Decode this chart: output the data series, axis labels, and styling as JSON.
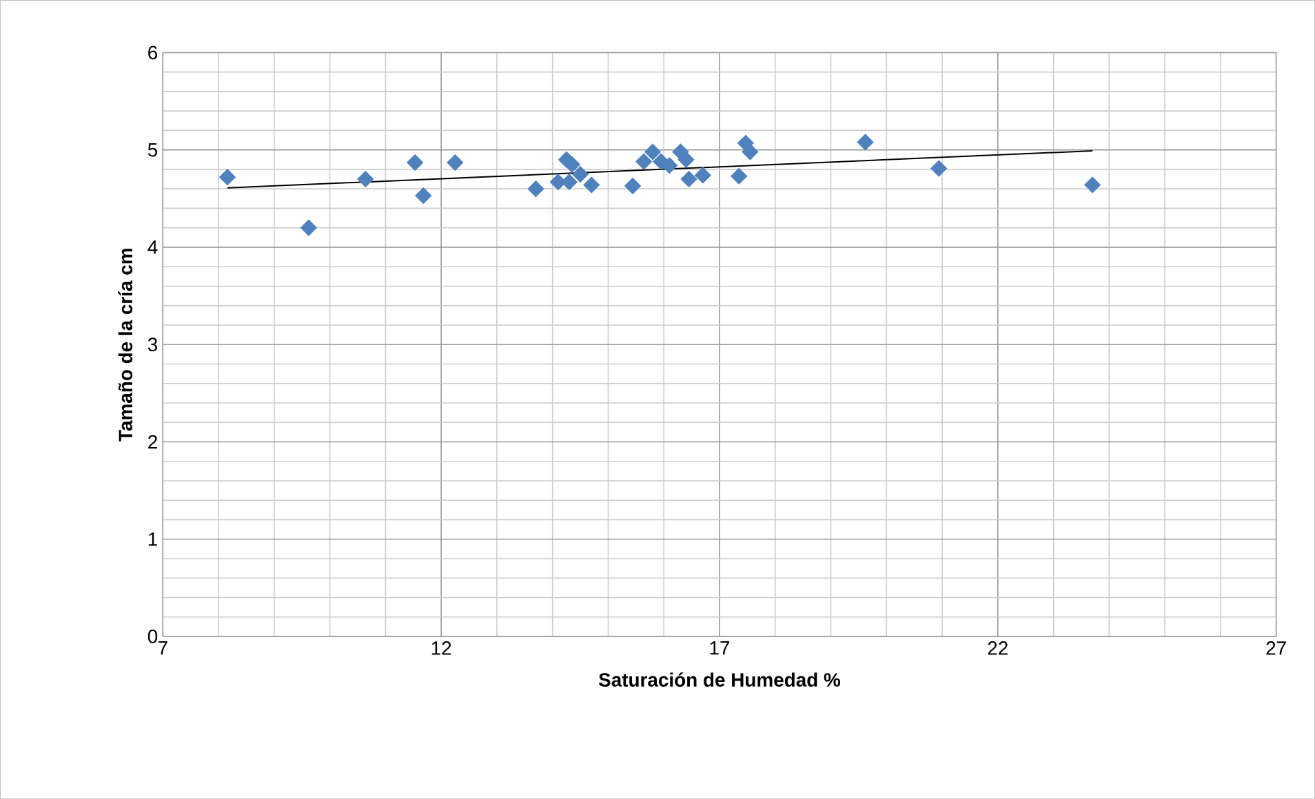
{
  "chart_data": {
    "type": "scatter",
    "xlabel": "Saturación de Humedad %",
    "ylabel": "Tamaño de la cría cm",
    "xlim": [
      7,
      27
    ],
    "xticks": [
      7,
      12,
      17,
      22,
      27
    ],
    "ylim": [
      0,
      6
    ],
    "yticks": [
      0,
      1,
      2,
      3,
      4,
      5,
      6
    ],
    "grid": true,
    "series": [
      {
        "marker": "diamond",
        "color": "#4f81bd",
        "x": [
          8.16,
          9.62,
          10.64,
          11.53,
          11.68,
          12.25,
          13.7,
          14.25,
          14.35,
          14.1,
          14.3,
          14.5,
          14.7,
          15.44,
          15.64,
          15.8,
          15.95,
          16.1,
          16.3,
          16.4,
          16.45,
          16.7,
          17.35,
          17.47,
          17.55,
          19.62,
          20.94,
          23.7
        ],
        "values": [
          4.72,
          4.2,
          4.7,
          4.87,
          4.53,
          4.87,
          4.6,
          4.9,
          4.85,
          4.67,
          4.67,
          4.75,
          4.64,
          4.63,
          4.88,
          4.98,
          4.88,
          4.84,
          4.98,
          4.9,
          4.7,
          4.74,
          4.73,
          5.07,
          4.98,
          5.08,
          4.81,
          4.64
        ]
      },
      {
        "type": "line",
        "color": "#000000",
        "x": [
          8.16,
          23.7
        ],
        "values": [
          4.61,
          4.99
        ]
      }
    ]
  }
}
